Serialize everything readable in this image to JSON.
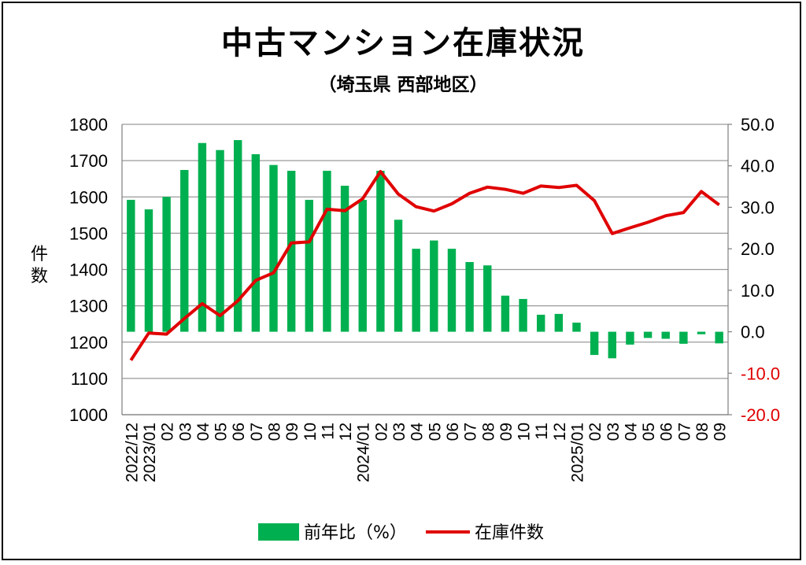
{
  "chart_data": {
    "type": "bar+line",
    "title": "中古マンション在庫状況",
    "subtitle": "（埼玉県 西部地区）",
    "y_left_label": "件数",
    "y_left_range": [
      1000,
      1800
    ],
    "y_left_ticks": [
      "1000",
      "1100",
      "1200",
      "1300",
      "1400",
      "1500",
      "1600",
      "1700",
      "1800"
    ],
    "y_right_range": [
      -20,
      50
    ],
    "y_right_ticks": [
      "-20.0",
      "-10.0",
      "0.0",
      "10.0",
      "20.0",
      "30.0",
      "40.0",
      "50.0"
    ],
    "negative_tick_color": "#e00000",
    "categories": [
      "2022/12",
      "2023/01",
      "02",
      "03",
      "04",
      "05",
      "06",
      "07",
      "08",
      "09",
      "10",
      "11",
      "12",
      "2024/01",
      "02",
      "03",
      "04",
      "05",
      "06",
      "07",
      "08",
      "09",
      "10",
      "11",
      "12",
      "2025/01",
      "02",
      "03",
      "04",
      "05",
      "06",
      "07",
      "08",
      "09"
    ],
    "series": [
      {
        "name": "前年比（%）",
        "kind": "bar",
        "axis": "right",
        "color": "#00b050",
        "values": [
          31.8,
          29.5,
          32.5,
          39.0,
          45.5,
          43.8,
          46.2,
          42.8,
          40.2,
          38.8,
          31.8,
          38.8,
          35.2,
          31.8,
          38.8,
          27.0,
          20.0,
          22.0,
          20.0,
          16.8,
          16.0,
          8.7,
          7.9,
          4.1,
          4.3,
          2.2,
          -5.6,
          -6.4,
          -3.1,
          -1.5,
          -1.7,
          -2.9,
          -0.6,
          -2.8
        ]
      },
      {
        "name": "在庫件数",
        "kind": "line",
        "axis": "left",
        "color": "#e00000",
        "values": [
          1150,
          1225,
          1222,
          1265,
          1306,
          1273,
          1314,
          1370,
          1391,
          1473,
          1476,
          1566,
          1562,
          1595,
          1670,
          1608,
          1573,
          1561,
          1581,
          1610,
          1627,
          1621,
          1610,
          1630,
          1626,
          1632,
          1590,
          1499,
          1515,
          1530,
          1548,
          1557,
          1615,
          1578
        ]
      }
    ],
    "grid": true,
    "legend_position": "bottom"
  }
}
